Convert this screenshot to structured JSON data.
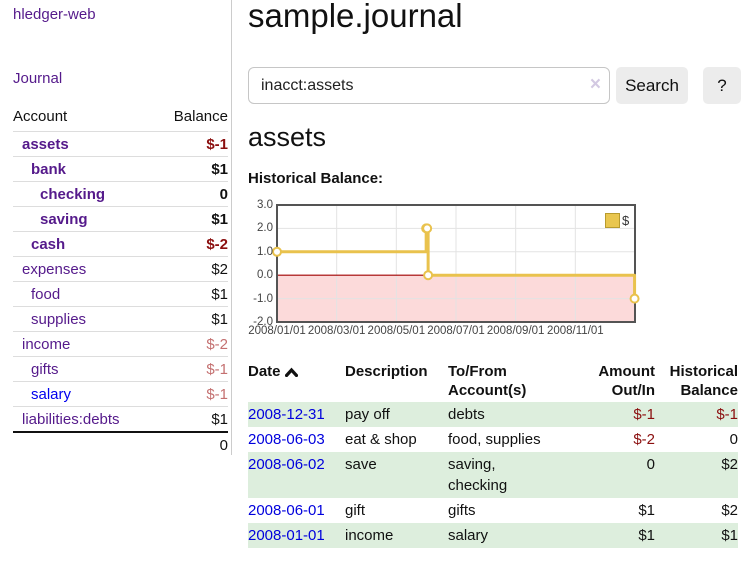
{
  "app": {
    "brand": "hledger-web"
  },
  "sidebar": {
    "journal_link": "Journal",
    "accounts": {
      "header_account": "Account",
      "header_balance": "Balance",
      "rows": [
        {
          "name": "assets",
          "balance": "$-1"
        },
        {
          "name": "bank",
          "balance": "$1"
        },
        {
          "name": "checking",
          "balance": "0"
        },
        {
          "name": "saving",
          "balance": "$1"
        },
        {
          "name": "cash",
          "balance": "$-2"
        },
        {
          "name": "expenses",
          "balance": "$2"
        },
        {
          "name": "food",
          "balance": "$1"
        },
        {
          "name": "supplies",
          "balance": "$1"
        },
        {
          "name": "income",
          "balance": "$-2"
        },
        {
          "name": "gifts",
          "balance": "$-1"
        },
        {
          "name": "salary",
          "balance": "$-1"
        },
        {
          "name": "liabilities:debts",
          "balance": "$1"
        }
      ],
      "total": "0"
    }
  },
  "main": {
    "title": "sample.journal",
    "search": {
      "value": "inacct:assets",
      "clear": "×",
      "submit": "Search",
      "help": "?"
    },
    "account_heading": "assets",
    "chart_heading": "Historical Balance:"
  },
  "chart_data": {
    "type": "line",
    "step": true,
    "title": "Historical Balance:",
    "series": [
      {
        "name": "$",
        "color": "#e9c24d",
        "points": [
          [
            "2008-01-01",
            1
          ],
          [
            "2008-06-01",
            2
          ],
          [
            "2008-06-02",
            2
          ],
          [
            "2008-06-03",
            0
          ],
          [
            "2008-12-31",
            -1
          ]
        ]
      }
    ],
    "x_range": [
      "2008-01-01",
      "2009-01-01"
    ],
    "ylim": [
      -2,
      3
    ],
    "y_tick_labels": [
      "3.0",
      "2.0",
      "1.0",
      "0.0",
      "-1.0",
      "-2.0"
    ],
    "x_tick_labels": [
      "2008/01/01",
      "2008/03/01",
      "2008/05/01",
      "2008/07/01",
      "2008/09/01",
      "2008/11/01"
    ],
    "grid": true,
    "negative_fill": "#fcdada",
    "zero_line_color": "#a40000",
    "legend": {
      "label": "$",
      "position": "top-right"
    }
  },
  "register": {
    "headers": {
      "date": "Date",
      "description": "Description",
      "account": "To/From Account(s)",
      "amount": "Amount Out/In",
      "balance": "Historical Balance"
    },
    "rows": [
      {
        "date": "2008-12-31",
        "description": "pay off",
        "accounts": "debts",
        "amount": "$-1",
        "balance": "$-1"
      },
      {
        "date": "2008-06-03",
        "description": "eat & shop",
        "accounts": "food, supplies",
        "amount": "$-2",
        "balance": "0"
      },
      {
        "date": "2008-06-02",
        "description": "save",
        "accounts": "saving,\nchecking",
        "amount": "0",
        "balance": "$2"
      },
      {
        "date": "2008-06-01",
        "description": "gift",
        "accounts": "gifts",
        "amount": "$1",
        "balance": "$2"
      },
      {
        "date": "2008-01-01",
        "description": "income",
        "accounts": "salary",
        "amount": "$1",
        "balance": "$1"
      }
    ]
  }
}
